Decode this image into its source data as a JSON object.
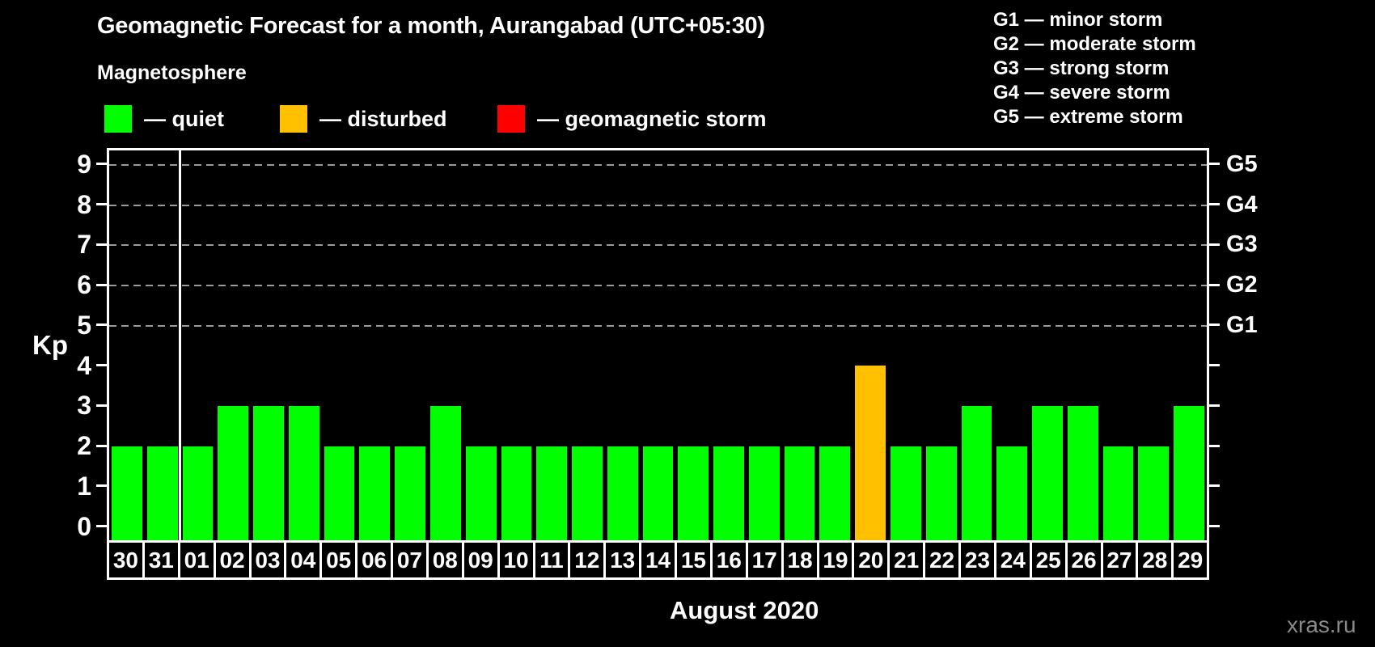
{
  "title": "Geomagnetic Forecast for a month, Aurangabad (UTC+05:30)",
  "subtitle": "Magnetosphere",
  "legend": {
    "items": [
      {
        "name": "quiet",
        "label": "— quiet",
        "color": "#00ff00"
      },
      {
        "name": "disturbed",
        "label": "— disturbed",
        "color": "#ffc000"
      },
      {
        "name": "storm",
        "label": "— geomagnetic storm",
        "color": "#ff0000"
      }
    ]
  },
  "storm_scale_legend": [
    "G1 — minor storm",
    "G2 — moderate storm",
    "G3 — strong storm",
    "G4 — severe storm",
    "G5 — extreme storm"
  ],
  "watermark": "xras.ru",
  "chart_data": {
    "type": "bar",
    "title": "Geomagnetic Forecast for a month, Aurangabad (UTC+05:30)",
    "xlabel": "August 2020",
    "ylabel": "Kp",
    "ylim": [
      0,
      9.4
    ],
    "yticks": [
      0,
      1,
      2,
      3,
      4,
      5,
      6,
      7,
      8,
      9
    ],
    "gridlines_at": [
      5,
      6,
      7,
      8,
      9
    ],
    "grid": "dashed horizontal at Kp 5-9 only",
    "legend_position": "top-left",
    "right_ticks": [
      {
        "kp": 5,
        "label": "G1"
      },
      {
        "kp": 6,
        "label": "G2"
      },
      {
        "kp": 7,
        "label": "G3"
      },
      {
        "kp": 8,
        "label": "G4"
      },
      {
        "kp": 9,
        "label": "G5"
      }
    ],
    "categories": [
      "30",
      "31",
      "01",
      "02",
      "03",
      "04",
      "05",
      "06",
      "07",
      "08",
      "09",
      "10",
      "11",
      "12",
      "13",
      "14",
      "15",
      "16",
      "17",
      "18",
      "19",
      "20",
      "21",
      "22",
      "23",
      "24",
      "25",
      "26",
      "27",
      "28",
      "29"
    ],
    "values": [
      2,
      2,
      2,
      3,
      3,
      3,
      2,
      2,
      2,
      3,
      2,
      2,
      2,
      2,
      2,
      2,
      2,
      2,
      2,
      2,
      2,
      4,
      2,
      2,
      3,
      2,
      3,
      3,
      2,
      2,
      3
    ],
    "statuses": [
      "quiet",
      "quiet",
      "quiet",
      "quiet",
      "quiet",
      "quiet",
      "quiet",
      "quiet",
      "quiet",
      "quiet",
      "quiet",
      "quiet",
      "quiet",
      "quiet",
      "quiet",
      "quiet",
      "quiet",
      "quiet",
      "quiet",
      "quiet",
      "quiet",
      "disturbed",
      "quiet",
      "quiet",
      "quiet",
      "quiet",
      "quiet",
      "quiet",
      "quiet",
      "quiet",
      "quiet"
    ],
    "status_colors": {
      "quiet": "#00ff00",
      "disturbed": "#ffc000",
      "storm": "#ff0000"
    },
    "month_separator_after_index": 1
  }
}
